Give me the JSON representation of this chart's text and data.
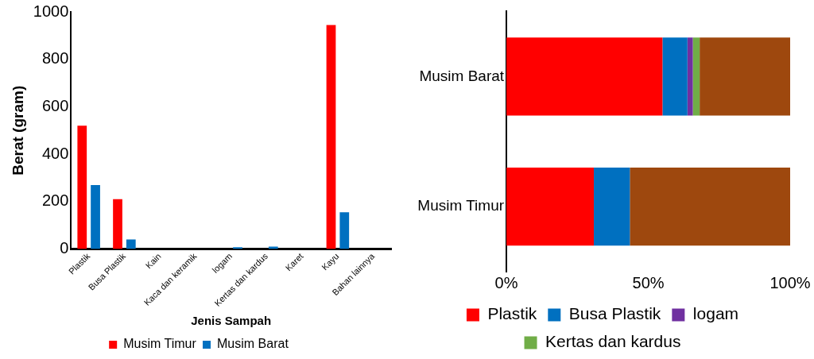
{
  "chart_data": [
    {
      "type": "bar",
      "xlabel": "Jenis Sampah",
      "ylabel": "Berat (gram)",
      "categories": [
        "Plastik",
        "Busa Plastik",
        "Kain",
        "Kaca dan keramik",
        "logam",
        "Kertas dan kardus",
        "Karet",
        "Kayu",
        "Bahan lainnya"
      ],
      "series": [
        {
          "name": "Musim Timur",
          "color": "#ff0000",
          "values": [
            520,
            210,
            0,
            0,
            0,
            0,
            0,
            945,
            0
          ]
        },
        {
          "name": "Musim Barat",
          "color": "#0070c0",
          "values": [
            270,
            40,
            0,
            0,
            8,
            10,
            0,
            155,
            0
          ]
        }
      ],
      "ylim": [
        0,
        1000
      ],
      "yticks": [
        0,
        200,
        400,
        600,
        800,
        1000
      ],
      "grid": false,
      "legend": "bottom"
    },
    {
      "type": "bar",
      "orientation": "horizontal",
      "stacked": true,
      "categories": [
        "Musim Barat",
        "Musim Timur"
      ],
      "series": [
        {
          "name": "Plastik",
          "color": "#ff0000",
          "values": [
            55,
            30.8
          ]
        },
        {
          "name": "Busa Plastik",
          "color": "#0070c0",
          "values": [
            8.8,
            12.7
          ]
        },
        {
          "name": "logam",
          "color": "#7030a0",
          "values": [
            1.9,
            0
          ]
        },
        {
          "name": "Kertas dan kardus",
          "color": "#70ad47",
          "values": [
            2.4,
            0
          ]
        },
        {
          "color": "#9e480e",
          "values": [
            31.9,
            56.5
          ]
        }
      ],
      "xlim": [
        0,
        100
      ],
      "xticks": [
        {
          "value": 0,
          "label": "0%"
        },
        {
          "value": 50,
          "label": "50%"
        },
        {
          "value": 100,
          "label": "100%"
        }
      ],
      "grid": false,
      "legend": "bottom"
    }
  ]
}
